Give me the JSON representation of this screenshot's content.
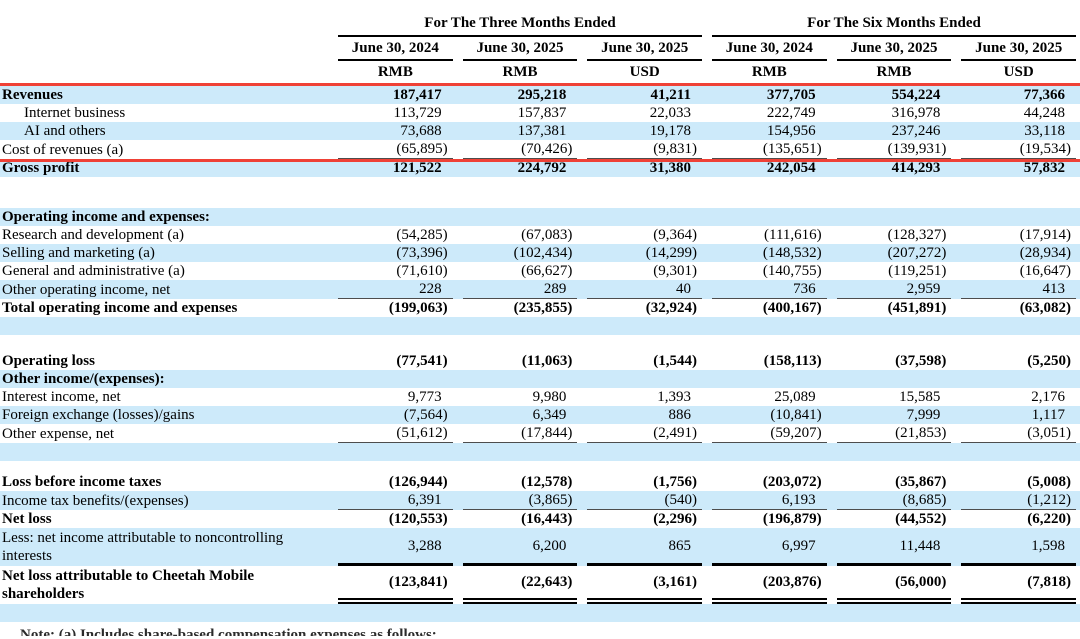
{
  "document": {
    "type": "income-statement-table",
    "company": "Cheetah Mobile",
    "currency_units": [
      "RMB",
      "USD"
    ]
  },
  "highlight_box": {
    "color": "#ef4136",
    "rows_enclosed": [
      "Revenues",
      "Internet business",
      "AI and others",
      "Cost of revenues (a)"
    ]
  },
  "colors": {
    "stripe_blue": "#cdeafa",
    "text": "#000000",
    "rule_black": "#000000"
  },
  "table": {
    "groups": [
      {
        "label": "For The Three Months Ended"
      },
      {
        "label": "For The Six Months Ended"
      }
    ],
    "columns": [
      {
        "date": "June 30, 2024",
        "unit": "RMB"
      },
      {
        "date": "June 30, 2025",
        "unit": "RMB"
      },
      {
        "date": "June 30, 2025",
        "unit": "USD"
      },
      {
        "date": "June 30, 2024",
        "unit": "RMB"
      },
      {
        "date": "June 30, 2025",
        "unit": "RMB"
      },
      {
        "date": "June 30, 2025",
        "unit": "USD"
      }
    ],
    "rows": [
      {
        "label": "Revenues",
        "values": [
          "187,417",
          "295,218",
          "41,211",
          "377,705",
          "554,224",
          "77,366"
        ],
        "shade": "blue",
        "bold": true,
        "boxed": true
      },
      {
        "label": "Internet business",
        "values": [
          "113,729",
          "157,837",
          "22,033",
          "222,749",
          "316,978",
          "44,248"
        ],
        "shade": "white",
        "indent": true,
        "boxed": true
      },
      {
        "label": "AI and others",
        "values": [
          "73,688",
          "137,381",
          "19,178",
          "154,956",
          "237,246",
          "33,118"
        ],
        "shade": "blue",
        "indent": true,
        "boxed": true
      },
      {
        "label": "Cost of revenues (a)",
        "values": [
          "(65,895)",
          "(70,426)",
          "(9,831)",
          "(135,651)",
          "(139,931)",
          "(19,534)"
        ],
        "shade": "white",
        "underline": "single",
        "boxed": true
      },
      {
        "label": "Gross profit",
        "values": [
          "121,522",
          "224,792",
          "31,380",
          "242,054",
          "414,293",
          "57,832"
        ],
        "shade": "blue",
        "bold": true
      },
      {
        "type": "spacer",
        "shade": "white",
        "height": 31
      },
      {
        "label": "Operating income and expenses:",
        "shade": "blue",
        "bold": true,
        "section": true
      },
      {
        "label": "Research and development (a)",
        "values": [
          "(54,285)",
          "(67,083)",
          "(9,364)",
          "(111,616)",
          "(128,327)",
          "(17,914)"
        ],
        "shade": "white"
      },
      {
        "label": "Selling and marketing (a)",
        "values": [
          "(73,396)",
          "(102,434)",
          "(14,299)",
          "(148,532)",
          "(207,272)",
          "(28,934)"
        ],
        "shade": "blue"
      },
      {
        "label": "General and administrative (a)",
        "values": [
          "(71,610)",
          "(66,627)",
          "(9,301)",
          "(140,755)",
          "(119,251)",
          "(16,647)"
        ],
        "shade": "white"
      },
      {
        "label": "Other operating income, net",
        "values": [
          "228",
          "289",
          "40",
          "736",
          "2,959",
          "413"
        ],
        "shade": "blue",
        "underline": "single"
      },
      {
        "label": "Total operating income and expenses",
        "values": [
          "(199,063)",
          "(235,855)",
          "(32,924)",
          "(400,167)",
          "(451,891)",
          "(63,082)"
        ],
        "shade": "white",
        "bold": true
      },
      {
        "type": "spacer",
        "shade": "blue",
        "height": 18
      },
      {
        "type": "spacer",
        "shade": "white",
        "height": 17
      },
      {
        "label": "Operating loss",
        "values": [
          "(77,541)",
          "(11,063)",
          "(1,544)",
          "(158,113)",
          "(37,598)",
          "(5,250)"
        ],
        "shade": "white",
        "bold": true
      },
      {
        "label": "Other income/(expenses):",
        "shade": "blue",
        "bold": true,
        "section": true
      },
      {
        "label": "Interest income, net",
        "values": [
          "9,773",
          "9,980",
          "1,393",
          "25,089",
          "15,585",
          "2,176"
        ],
        "shade": "white"
      },
      {
        "label": "Foreign exchange (losses)/gains",
        "values": [
          "(7,564)",
          "6,349",
          "886",
          "(10,841)",
          "7,999",
          "1,117"
        ],
        "shade": "blue"
      },
      {
        "label": "Other expense, net",
        "values": [
          "(51,612)",
          "(17,844)",
          "(2,491)",
          "(59,207)",
          "(21,853)",
          "(3,051)"
        ],
        "shade": "white",
        "underline": "single"
      },
      {
        "type": "spacer",
        "shade": "blue",
        "height": 18
      },
      {
        "type": "spacer",
        "shade": "white",
        "height": 12
      },
      {
        "label": "Loss before income taxes",
        "values": [
          "(126,944)",
          "(12,578)",
          "(1,756)",
          "(203,072)",
          "(35,867)",
          "(5,008)"
        ],
        "shade": "white",
        "bold": true
      },
      {
        "label": "Income tax benefits/(expenses)",
        "values": [
          "6,391",
          "(3,865)",
          "(540)",
          "6,193",
          "(8,685)",
          "(1,212)"
        ],
        "shade": "blue",
        "underline": "single"
      },
      {
        "label": "Net loss",
        "values": [
          "(120,553)",
          "(16,443)",
          "(2,296)",
          "(196,879)",
          "(44,552)",
          "(6,220)"
        ],
        "shade": "white",
        "bold": true
      },
      {
        "label": "Less: net income attributable to noncontrolling interests",
        "values": [
          "3,288",
          "6,200",
          "865",
          "6,997",
          "11,448",
          "1,598"
        ],
        "shade": "blue",
        "tall": true,
        "underline": "thick"
      },
      {
        "label": "Net loss attributable to Cheetah Mobile shareholders",
        "values": [
          "(123,841)",
          "(22,643)",
          "(3,161)",
          "(203,876)",
          "(56,000)",
          "(7,818)"
        ],
        "shade": "white",
        "bold": true,
        "tall": true,
        "underline": "double"
      },
      {
        "type": "spacer",
        "shade": "blue",
        "height": 18
      }
    ]
  },
  "footnote": {
    "partial_text": "Note: (a) Includes share-based compensation expenses as follows:"
  }
}
